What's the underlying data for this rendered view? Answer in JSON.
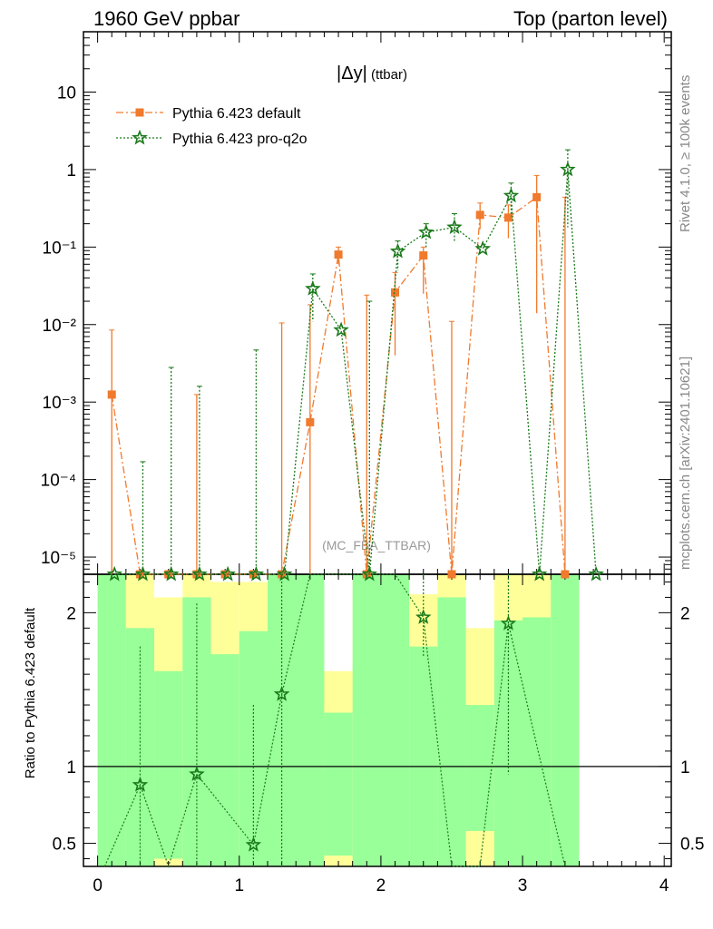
{
  "header": {
    "left": "1960 GeV ppbar",
    "right": "Top (parton level)"
  },
  "side_labels": {
    "top": "Rivet 4.1.0, ≥ 100k events",
    "bottom": "mcplots.cern.ch [arXiv:2401.10621]"
  },
  "colors": {
    "default": "#f07a2d",
    "proq2o": "#1a7a1a",
    "band_green": "#99ff99",
    "band_yellow": "#ffff99"
  },
  "chart_data": {
    "type": "line",
    "title_main": "|Δy|",
    "title_sub": "(ttbar)",
    "watermark": "(MC_FBA_TTBAR)",
    "xlim": [
      -0.1,
      4.05
    ],
    "ylim_top": [
      6e-06,
      60
    ],
    "ylim_ratio": [
      0.35,
      2.25
    ],
    "x_ticks": [
      "0",
      "1",
      "2",
      "3",
      "4"
    ],
    "y_ticks_top": [
      "10⁻⁵",
      "10⁻⁴",
      "10⁻³",
      "10⁻²",
      "10⁻¹",
      "1",
      "10"
    ],
    "y_ticks_ratio": [
      "0.5",
      "1",
      "2"
    ],
    "ratio_ylabel": "Ratio to Pythia 6.423 default",
    "series": [
      {
        "name": "Pythia 6.423 default",
        "style": "dashdot",
        "marker": "square",
        "x": [
          0.1,
          0.3,
          0.5,
          0.7,
          0.9,
          1.1,
          1.3,
          1.5,
          1.7,
          1.9,
          2.1,
          2.3,
          2.5,
          2.7,
          2.9,
          3.1,
          3.3
        ],
        "values": [
          0.00125,
          0.0,
          0.0,
          0.0,
          0.0,
          0.0,
          0.0,
          0.00055,
          0.08,
          0.0,
          0.026,
          0.078,
          0.0,
          0.26,
          0.24,
          0.44,
          0.0
        ],
        "err_up": [
          0.0085,
          0.0,
          0.0,
          0.00125,
          0.0,
          0.0,
          0.0105,
          0.018,
          0.1,
          0.024,
          0.047,
          0.1,
          0.011,
          0.37,
          0.35,
          0.84,
          0.44
        ],
        "err_down": [
          0.0,
          0.0,
          0.0,
          0.0,
          0.0,
          0.0,
          0.0,
          0.0,
          0.06,
          0.0,
          0.004,
          0.025,
          0.0,
          0.17,
          0.13,
          0.014,
          0.0
        ]
      },
      {
        "name": "Pythia 6.423 pro-q2o",
        "style": "dotted",
        "marker": "star",
        "x": [
          0.1,
          0.3,
          0.5,
          0.7,
          0.9,
          1.1,
          1.3,
          1.5,
          1.7,
          1.9,
          2.1,
          2.3,
          2.5,
          2.7,
          2.9,
          3.1,
          3.3,
          3.5
        ],
        "values": [
          0.0,
          0.0,
          0.0,
          0.0,
          0.0,
          0.0,
          0.0,
          0.029,
          0.0085,
          0.0,
          0.088,
          0.155,
          0.18,
          0.095,
          0.46,
          0.0,
          1.0,
          0.0
        ],
        "err_up": [
          0.0,
          0.00017,
          0.0028,
          0.0016,
          0.0,
          0.0047,
          0.0,
          0.045,
          0.0,
          0.02,
          0.12,
          0.2,
          0.27,
          0.0,
          0.67,
          0.0,
          1.8,
          0.0
        ],
        "err_down": [
          0.0,
          0.0,
          0.0,
          0.0,
          0.0,
          0.0,
          0.0,
          0.011,
          0.0,
          0.0,
          0.05,
          0.1,
          0.12,
          0.0,
          0.25,
          0.0,
          0.18,
          0.0
        ]
      }
    ],
    "ratio": {
      "reference": 1.0,
      "points_x": [
        0.3,
        0.7,
        1.1,
        1.3,
        2.3,
        2.9
      ],
      "points_y": [
        0.88,
        0.95,
        0.49,
        1.47,
        1.97,
        1.93
      ],
      "err_up": [
        1.78,
        2.06,
        1.4,
        2.3,
        2.3,
        2.3
      ],
      "err_down": [
        0.35,
        0.35,
        0.35,
        0.35,
        1.72,
        0.95
      ],
      "line_x": [
        0.05,
        0.3,
        0.5,
        0.7,
        1.1,
        1.3,
        1.5,
        1.9,
        2.1,
        2.3,
        2.5,
        2.7,
        2.9,
        3.3
      ],
      "line_y": [
        0.35,
        0.88,
        0.35,
        0.95,
        0.49,
        1.47,
        2.25,
        2.25,
        2.25,
        1.97,
        0.35,
        0.35,
        1.93,
        0.35
      ],
      "bands": [
        {
          "x0": 0.0,
          "x1": 0.2,
          "g_lo": 0.35,
          "g_hi": 2.25,
          "y_lo": 0.35,
          "y_hi": 2.25
        },
        {
          "x0": 0.2,
          "x1": 0.4,
          "g_lo": 0.35,
          "g_hi": 1.9,
          "y_lo": 0.35,
          "y_hi": 2.25
        },
        {
          "x0": 0.4,
          "x1": 0.6,
          "g_lo": 0.4,
          "g_hi": 1.62,
          "y_lo": 0.35,
          "y_hi": 2.1
        },
        {
          "x0": 0.6,
          "x1": 0.8,
          "g_lo": 0.35,
          "g_hi": 2.1,
          "y_lo": 0.35,
          "y_hi": 2.25
        },
        {
          "x0": 0.8,
          "x1": 1.0,
          "g_lo": 0.35,
          "g_hi": 1.73,
          "y_lo": 0.35,
          "y_hi": 2.2
        },
        {
          "x0": 1.0,
          "x1": 1.2,
          "g_lo": 0.35,
          "g_hi": 1.88,
          "y_lo": 0.35,
          "y_hi": 2.2
        },
        {
          "x0": 1.2,
          "x1": 1.6,
          "g_lo": 0.35,
          "g_hi": 2.25,
          "y_lo": 0.35,
          "y_hi": 2.25
        },
        {
          "x0": 1.6,
          "x1": 1.8,
          "g_lo": 0.42,
          "g_hi": 1.35,
          "y_lo": 0.35,
          "y_hi": 1.62
        },
        {
          "x0": 1.8,
          "x1": 2.2,
          "g_lo": 0.35,
          "g_hi": 2.25,
          "y_lo": 0.35,
          "y_hi": 2.25
        },
        {
          "x0": 2.2,
          "x1": 2.4,
          "g_lo": 0.35,
          "g_hi": 1.78,
          "y_lo": 0.35,
          "y_hi": 2.12
        },
        {
          "x0": 2.4,
          "x1": 2.6,
          "g_lo": 0.35,
          "g_hi": 2.1,
          "y_lo": 0.35,
          "y_hi": 2.25
        },
        {
          "x0": 2.6,
          "x1": 2.8,
          "g_lo": 0.58,
          "g_hi": 1.4,
          "y_lo": 0.35,
          "y_hi": 1.9
        },
        {
          "x0": 2.8,
          "x1": 3.0,
          "g_lo": 0.35,
          "g_hi": 1.95,
          "y_lo": 0.35,
          "y_hi": 2.25
        },
        {
          "x0": 3.0,
          "x1": 3.2,
          "g_lo": 0.35,
          "g_hi": 1.97,
          "y_lo": 0.35,
          "y_hi": 2.25
        },
        {
          "x0": 3.2,
          "x1": 3.4,
          "g_lo": 0.35,
          "g_hi": 2.25,
          "y_lo": 0.35,
          "y_hi": 2.25
        }
      ]
    }
  }
}
